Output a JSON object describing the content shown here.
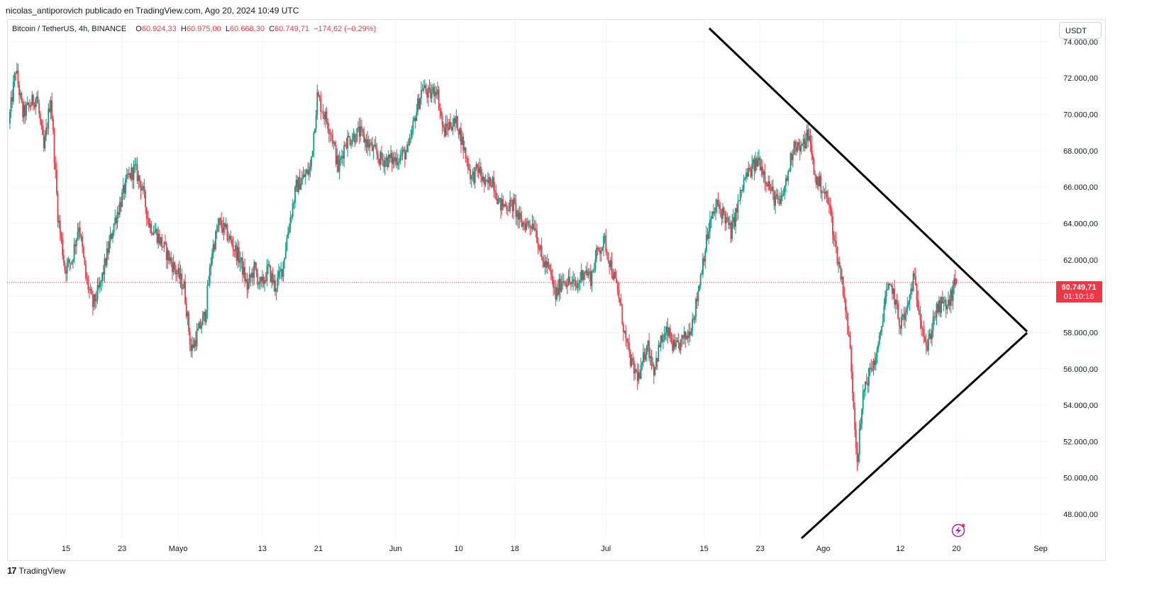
{
  "header": {
    "publisher_line": "nicolas_antiporovich publicado en TradingView.com, Ago 20, 2024 10:49 UTC"
  },
  "legend": {
    "symbol": "Bitcoin / TetherUS, 4h, BINANCE",
    "o_label": "O",
    "o_value": "60.924,33",
    "h_label": "H",
    "h_value": "60.975,00",
    "l_label": "L",
    "l_value": "60.668,30",
    "c_label": "C",
    "c_value": "60.749,71",
    "change": "−174,62 (−0,29%)"
  },
  "currency_button": "USDT",
  "price_badge": {
    "price": "60.749,71",
    "countdown": "01:10:16",
    "color": "#f23645"
  },
  "footer": {
    "logo_text": "TradingView",
    "logo_mark": "17"
  },
  "icons": {
    "lightning": "lightning-icon"
  },
  "colors": {
    "up": "#089981",
    "down": "#f23645",
    "drawing": "#000000",
    "grid": "#f0f3fa"
  },
  "chart_data": {
    "type": "candlestick",
    "title": "Bitcoin / TetherUS, 4h, BINANCE",
    "interval": "4h",
    "y_ticks": [
      "48.000,00",
      "50.000,00",
      "52.000,00",
      "54.000,00",
      "56.000,00",
      "58.000,00",
      "60.000,00",
      "62.000,00",
      "64.000,00",
      "66.000,00",
      "68.000,00",
      "70.000,00",
      "72.000,00",
      "74.000,00"
    ],
    "y_tick_values": [
      48000,
      50000,
      52000,
      54000,
      56000,
      58000,
      60000,
      62000,
      64000,
      66000,
      68000,
      70000,
      72000,
      74000
    ],
    "ylim": [
      46600,
      75200
    ],
    "x_ticks": [
      {
        "label": "15",
        "day": 15
      },
      {
        "label": "23",
        "day": 23
      },
      {
        "label": "Mayo",
        "day": 31
      },
      {
        "label": "13",
        "day": 43
      },
      {
        "label": "21",
        "day": 51
      },
      {
        "label": "Jun",
        "day": 62
      },
      {
        "label": "10",
        "day": 71
      },
      {
        "label": "18",
        "day": 79
      },
      {
        "label": "Jul",
        "day": 92
      },
      {
        "label": "15",
        "day": 106
      },
      {
        "label": "23",
        "day": 114
      },
      {
        "label": "Ago",
        "day": 123
      },
      {
        "label": "12",
        "day": 134
      },
      {
        "label": "20",
        "day": 142
      },
      {
        "label": "Sep",
        "day": 154
      }
    ],
    "xlim": [
      6.6,
      155.2
    ],
    "last_price": 60749.71,
    "path": [
      [
        7,
        69500
      ],
      [
        8,
        72500
      ],
      [
        9,
        70000
      ],
      [
        11,
        71000
      ],
      [
        12,
        68000
      ],
      [
        13,
        71000
      ],
      [
        14,
        64500
      ],
      [
        15,
        61500
      ],
      [
        16,
        62000
      ],
      [
        17,
        64000
      ],
      [
        18,
        61000
      ],
      [
        19,
        59500
      ],
      [
        20,
        60500
      ],
      [
        22,
        64000
      ],
      [
        24,
        66500
      ],
      [
        25,
        67000
      ],
      [
        26,
        66000
      ],
      [
        27,
        64000
      ],
      [
        28,
        63500
      ],
      [
        30,
        62000
      ],
      [
        32,
        60500
      ],
      [
        33,
        57000
      ],
      [
        34,
        58000
      ],
      [
        35,
        59000
      ],
      [
        36,
        62500
      ],
      [
        37,
        64000
      ],
      [
        38,
        63500
      ],
      [
        40,
        62000
      ],
      [
        41,
        60500
      ],
      [
        42,
        61500
      ],
      [
        43,
        60500
      ],
      [
        44,
        61500
      ],
      [
        45,
        60500
      ],
      [
        46,
        61500
      ],
      [
        47,
        64000
      ],
      [
        48,
        66000
      ],
      [
        49,
        66500
      ],
      [
        50,
        67000
      ],
      [
        51,
        71000
      ],
      [
        52,
        70000
      ],
      [
        53,
        69000
      ],
      [
        54,
        67000
      ],
      [
        55,
        68500
      ],
      [
        57,
        69000
      ],
      [
        59,
        68000
      ],
      [
        60,
        67500
      ],
      [
        62,
        67500
      ],
      [
        64,
        68000
      ],
      [
        65,
        70000
      ],
      [
        66,
        71500
      ],
      [
        67,
        71000
      ],
      [
        68,
        71500
      ],
      [
        69,
        69000
      ],
      [
        70,
        69500
      ],
      [
        71,
        69500
      ],
      [
        72,
        68000
      ],
      [
        73,
        66500
      ],
      [
        74,
        67000
      ],
      [
        75,
        66000
      ],
      [
        76,
        66500
      ],
      [
        77,
        65000
      ],
      [
        79,
        65000
      ],
      [
        80,
        64000
      ],
      [
        82,
        64000
      ],
      [
        83,
        62000
      ],
      [
        84,
        61500
      ],
      [
        85,
        60000
      ],
      [
        86,
        61000
      ],
      [
        88,
        60500
      ],
      [
        89,
        61500
      ],
      [
        90,
        61000
      ],
      [
        91,
        62500
      ],
      [
        92,
        63000
      ],
      [
        93,
        61500
      ],
      [
        94,
        60000
      ],
      [
        95,
        57500
      ],
      [
        96,
        56000
      ],
      [
        97,
        55500
      ],
      [
        98,
        57500
      ],
      [
        99,
        56000
      ],
      [
        100,
        57500
      ],
      [
        101,
        58000
      ],
      [
        102,
        57000
      ],
      [
        103,
        57500
      ],
      [
        104,
        58000
      ],
      [
        105,
        59500
      ],
      [
        106,
        62000
      ],
      [
        107,
        64000
      ],
      [
        108,
        65000
      ],
      [
        109,
        64500
      ],
      [
        110,
        63500
      ],
      [
        111,
        65000
      ],
      [
        112,
        66500
      ],
      [
        113,
        67000
      ],
      [
        114,
        67500
      ],
      [
        115,
        66500
      ],
      [
        116,
        65500
      ],
      [
        117,
        65000
      ],
      [
        118,
        66500
      ],
      [
        119,
        68500
      ],
      [
        120,
        68000
      ],
      [
        121,
        69000
      ],
      [
        122,
        66500
      ],
      [
        123,
        66000
      ],
      [
        124,
        65000
      ],
      [
        125,
        62500
      ],
      [
        126,
        60500
      ],
      [
        127,
        57000
      ],
      [
        128,
        51000
      ],
      [
        129,
        55000
      ],
      [
        130,
        56000
      ],
      [
        131,
        57000
      ],
      [
        132,
        60000
      ],
      [
        133,
        60500
      ],
      [
        134,
        58500
      ],
      [
        135,
        59000
      ],
      [
        136,
        61000
      ],
      [
        137,
        59000
      ],
      [
        138,
        57000
      ],
      [
        139,
        59000
      ],
      [
        140,
        59500
      ],
      [
        141,
        59500
      ],
      [
        142,
        60750
      ]
    ]
  }
}
